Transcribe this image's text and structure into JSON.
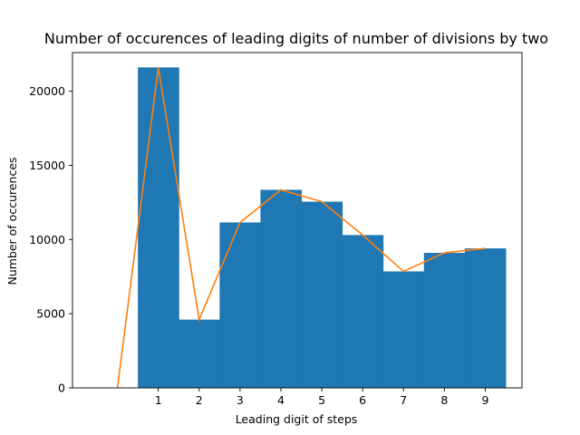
{
  "chart_data": {
    "type": "bar",
    "title": "Number of occurences of leading digits of number of divisions by two",
    "xlabel": "Leading digit of steps",
    "ylabel": "Number of occurences",
    "categories": [
      "1",
      "2",
      "3",
      "4",
      "5",
      "6",
      "7",
      "8",
      "9"
    ],
    "x": [
      1,
      2,
      3,
      4,
      5,
      6,
      7,
      8,
      9
    ],
    "bar_values": [
      21600,
      4600,
      11150,
      13350,
      12550,
      10300,
      7850,
      9100,
      9400
    ],
    "line": {
      "x": [
        0,
        1,
        2,
        3,
        4,
        5,
        6,
        7,
        8,
        9
      ],
      "y": [
        0,
        21600,
        4600,
        11150,
        13350,
        12550,
        10300,
        7850,
        9100,
        9400
      ]
    },
    "xlim": [
      -1.1,
      9.9
    ],
    "ylim": [
      0,
      22600
    ],
    "yticks": [
      0,
      5000,
      10000,
      15000,
      20000
    ],
    "xticks": [
      1,
      2,
      3,
      4,
      5,
      6,
      7,
      8,
      9
    ],
    "colors": {
      "bars": "#1f77b4",
      "line": "#ff7f0e"
    },
    "grid": false,
    "legend": "none"
  }
}
